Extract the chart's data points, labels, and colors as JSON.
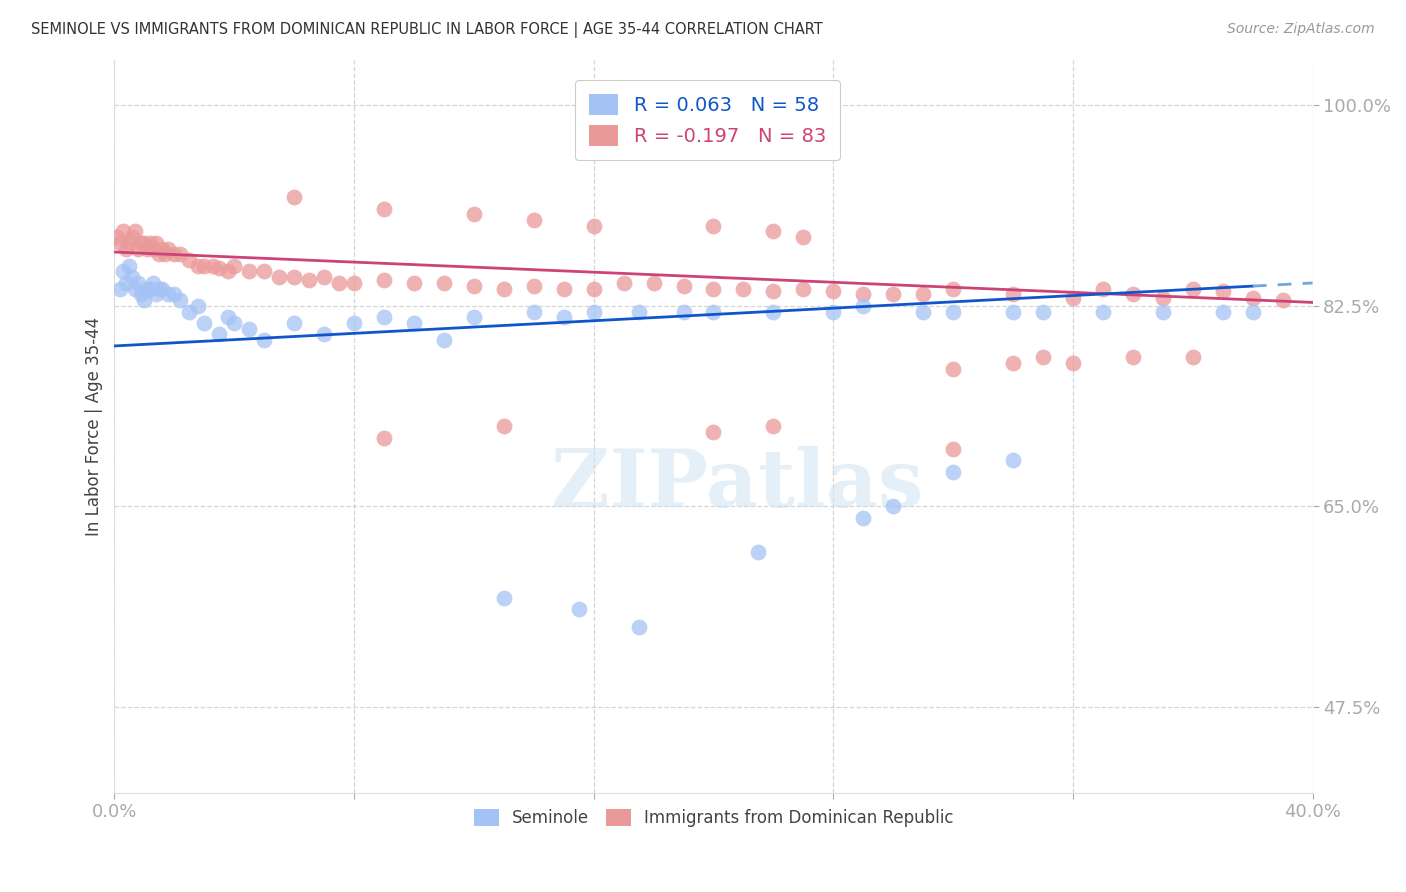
{
  "title": "SEMINOLE VS IMMIGRANTS FROM DOMINICAN REPUBLIC IN LABOR FORCE | AGE 35-44 CORRELATION CHART",
  "source_text": "Source: ZipAtlas.com",
  "ylabel": "In Labor Force | Age 35-44",
  "xlim": [
    0.0,
    0.4
  ],
  "ylim": [
    0.4,
    1.04
  ],
  "xticks": [
    0.0,
    0.08,
    0.16,
    0.24,
    0.32,
    0.4
  ],
  "xticklabels": [
    "0.0%",
    "",
    "",
    "",
    "",
    "40.0%"
  ],
  "yticks": [
    0.475,
    0.65,
    0.825,
    1.0
  ],
  "yticklabels": [
    "47.5%",
    "65.0%",
    "82.5%",
    "100.0%"
  ],
  "blue_R": 0.063,
  "blue_N": 58,
  "pink_R": -0.197,
  "pink_N": 83,
  "blue_color": "#a4c2f4",
  "pink_color": "#ea9999",
  "blue_line_color": "#1155cc",
  "pink_line_color": "#cc4477",
  "blue_line_y0": 0.79,
  "blue_line_y1": 0.845,
  "pink_line_y0": 0.872,
  "pink_line_y1": 0.828,
  "blue_scatter_x": [
    0.002,
    0.003,
    0.004,
    0.005,
    0.006,
    0.007,
    0.008,
    0.009,
    0.01,
    0.011,
    0.012,
    0.013,
    0.014,
    0.015,
    0.016,
    0.018,
    0.02,
    0.022,
    0.025,
    0.028,
    0.03,
    0.035,
    0.038,
    0.04,
    0.045,
    0.05,
    0.06,
    0.07,
    0.08,
    0.09,
    0.1,
    0.11,
    0.12,
    0.14,
    0.15,
    0.16,
    0.175,
    0.19,
    0.2,
    0.22,
    0.24,
    0.25,
    0.27,
    0.28,
    0.3,
    0.31,
    0.33,
    0.35,
    0.37,
    0.38,
    0.3,
    0.28,
    0.26,
    0.25,
    0.215,
    0.13,
    0.155,
    0.175
  ],
  "blue_scatter_y": [
    0.84,
    0.855,
    0.845,
    0.86,
    0.85,
    0.84,
    0.845,
    0.835,
    0.83,
    0.84,
    0.84,
    0.845,
    0.835,
    0.84,
    0.84,
    0.835,
    0.835,
    0.83,
    0.82,
    0.825,
    0.81,
    0.8,
    0.815,
    0.81,
    0.805,
    0.795,
    0.81,
    0.8,
    0.81,
    0.815,
    0.81,
    0.795,
    0.815,
    0.82,
    0.815,
    0.82,
    0.82,
    0.82,
    0.82,
    0.82,
    0.82,
    0.825,
    0.82,
    0.82,
    0.82,
    0.82,
    0.82,
    0.82,
    0.82,
    0.82,
    0.69,
    0.68,
    0.65,
    0.64,
    0.61,
    0.57,
    0.56,
    0.545
  ],
  "pink_scatter_x": [
    0.001,
    0.002,
    0.003,
    0.004,
    0.005,
    0.006,
    0.007,
    0.008,
    0.009,
    0.01,
    0.011,
    0.012,
    0.013,
    0.014,
    0.015,
    0.016,
    0.017,
    0.018,
    0.02,
    0.022,
    0.025,
    0.028,
    0.03,
    0.033,
    0.035,
    0.038,
    0.04,
    0.045,
    0.05,
    0.055,
    0.06,
    0.065,
    0.07,
    0.075,
    0.08,
    0.09,
    0.1,
    0.11,
    0.12,
    0.13,
    0.14,
    0.15,
    0.16,
    0.17,
    0.18,
    0.19,
    0.2,
    0.21,
    0.22,
    0.23,
    0.24,
    0.25,
    0.26,
    0.27,
    0.28,
    0.3,
    0.32,
    0.33,
    0.34,
    0.35,
    0.36,
    0.37,
    0.38,
    0.39,
    0.06,
    0.09,
    0.12,
    0.14,
    0.16,
    0.2,
    0.22,
    0.23,
    0.28,
    0.3,
    0.31,
    0.32,
    0.34,
    0.36,
    0.28,
    0.09,
    0.13,
    0.2,
    0.22
  ],
  "pink_scatter_y": [
    0.885,
    0.88,
    0.89,
    0.875,
    0.88,
    0.885,
    0.89,
    0.875,
    0.88,
    0.88,
    0.875,
    0.88,
    0.875,
    0.88,
    0.87,
    0.875,
    0.87,
    0.875,
    0.87,
    0.87,
    0.865,
    0.86,
    0.86,
    0.86,
    0.858,
    0.855,
    0.86,
    0.855,
    0.855,
    0.85,
    0.85,
    0.848,
    0.85,
    0.845,
    0.845,
    0.848,
    0.845,
    0.845,
    0.842,
    0.84,
    0.842,
    0.84,
    0.84,
    0.845,
    0.845,
    0.842,
    0.84,
    0.84,
    0.838,
    0.84,
    0.838,
    0.835,
    0.835,
    0.835,
    0.84,
    0.835,
    0.832,
    0.84,
    0.835,
    0.832,
    0.84,
    0.838,
    0.832,
    0.83,
    0.92,
    0.91,
    0.905,
    0.9,
    0.895,
    0.895,
    0.89,
    0.885,
    0.77,
    0.775,
    0.78,
    0.775,
    0.78,
    0.78,
    0.7,
    0.71,
    0.72,
    0.715,
    0.72
  ]
}
